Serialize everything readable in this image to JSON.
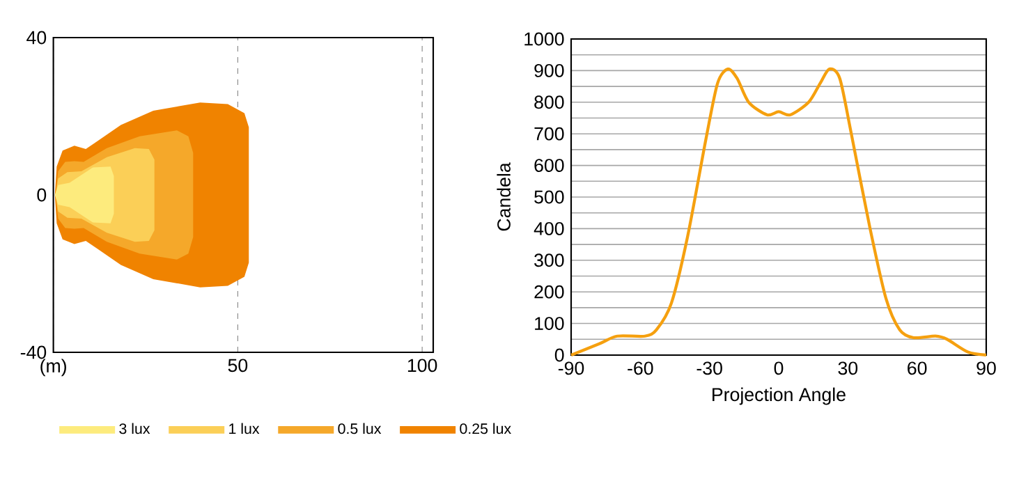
{
  "chart_data": [
    {
      "type": "area",
      "xlim": [
        0,
        103
      ],
      "ylim": [
        -40,
        40
      ],
      "xticks": [
        {
          "value": 0,
          "label": "(m)"
        },
        50,
        100
      ],
      "yticks": [
        -40,
        0,
        40
      ],
      "grid": "x",
      "legend": "bottom",
      "series": [
        {
          "name": "3 lux",
          "color": "#fdeb7d",
          "x": [
            0.4,
            1.3,
            4.4,
            10.7,
            15.5,
            16.4
          ],
          "values": [
            null,
            null,
            null,
            null,
            null,
            null
          ],
          "upper": [
            0,
            2.5,
            3.1,
            7.0,
            7.2,
            4.8
          ],
          "lower": [
            0,
            -2.5,
            -3.1,
            -7.0,
            -7.2,
            -4.8
          ]
        },
        {
          "name": "1 lux",
          "color": "#fbcf57",
          "x": [
            0.6,
            1.3,
            3.8,
            7.6,
            14.5,
            22.1,
            25.9,
            27.4
          ],
          "values": [
            null,
            null,
            null,
            null,
            null,
            null,
            null,
            null
          ],
          "upper": [
            0,
            4.2,
            5.8,
            6.0,
            9.6,
            11.9,
            11.7,
            9.0
          ],
          "lower": [
            0,
            -4.2,
            -5.8,
            -6.0,
            -9.6,
            -11.9,
            -11.7,
            -9.0
          ]
        },
        {
          "name": "0.5 lux",
          "color": "#f5a82a",
          "x": [
            0.6,
            1.3,
            3.2,
            5.7,
            8.2,
            14.5,
            23.4,
            33.5,
            36.6,
            37.9
          ],
          "values": [
            null,
            null,
            null,
            null,
            null,
            null,
            null,
            null,
            null,
            null
          ],
          "upper": [
            0,
            6.0,
            8.4,
            8.6,
            8.4,
            11.9,
            14.9,
            16.4,
            14.9,
            10.7
          ],
          "lower": [
            0,
            -6.0,
            -8.4,
            -8.6,
            -8.4,
            -11.9,
            -14.9,
            -16.4,
            -14.9,
            -10.7
          ]
        },
        {
          "name": "0.25 lux",
          "color": "#f08300",
          "x": [
            0.4,
            0.9,
            2.5,
            5.7,
            8.8,
            12.0,
            18.3,
            27.1,
            39.8,
            47.3,
            51.8,
            53.0
          ],
          "values": [
            null,
            null,
            null,
            null,
            null,
            null,
            null,
            null,
            null,
            null,
            null,
            null
          ],
          "upper": [
            0,
            7.2,
            11.3,
            12.5,
            11.7,
            13.7,
            17.8,
            21.4,
            23.5,
            23.1,
            20.8,
            17.2
          ],
          "lower": [
            0,
            -7.2,
            -11.3,
            -12.5,
            -11.7,
            -13.7,
            -17.8,
            -21.4,
            -23.5,
            -23.1,
            -20.8,
            -17.2
          ]
        }
      ]
    },
    {
      "type": "line",
      "xlabel": "Projection Angle",
      "ylabel": "Candela",
      "xlim": [
        -90,
        90
      ],
      "ylim": [
        0,
        1000
      ],
      "xticks": [
        -90,
        -60,
        -30,
        0,
        30,
        60,
        90
      ],
      "yticks": [
        0,
        {
          "value": 50,
          "label": null
        },
        100,
        {
          "value": 150,
          "label": null
        },
        200,
        {
          "value": 250,
          "label": null
        },
        300,
        {
          "value": 350,
          "label": null
        },
        400,
        {
          "value": 450,
          "label": null
        },
        500,
        {
          "value": 550,
          "label": null
        },
        600,
        {
          "value": 650,
          "label": null
        },
        700,
        {
          "value": 750,
          "label": null
        },
        800,
        {
          "value": 850,
          "label": null
        },
        900,
        {
          "value": 950,
          "label": null
        },
        1000
      ],
      "grid": "y",
      "series": [
        {
          "color": "#f5a00f",
          "x": [
            -90,
            -78,
            -70,
            -58,
            -53,
            -46.5,
            -39.5,
            -31.5,
            -26.5,
            -22,
            -18,
            -13,
            -5,
            0,
            5,
            13,
            18,
            22,
            26.5,
            31.5,
            39.5,
            46.5,
            52.5,
            58.5,
            68,
            73,
            82,
            90
          ],
          "values": [
            0,
            35,
            60,
            60,
            80,
            165,
            375,
            685,
            860,
            905,
            875,
            800,
            760,
            770,
            760,
            800,
            860,
            905,
            875,
            700,
            405,
            180,
            80,
            55,
            60,
            50,
            10,
            0
          ]
        }
      ]
    }
  ]
}
